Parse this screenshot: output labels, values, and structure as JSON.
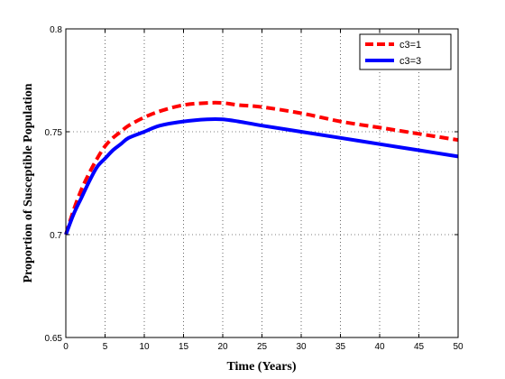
{
  "chart_data": {
    "type": "line",
    "title": "",
    "xlabel": "Time (Years)",
    "ylabel": "Proportion of Susceptible Population",
    "xlim": [
      0,
      50
    ],
    "ylim": [
      0.65,
      0.8
    ],
    "xticks": [
      0,
      5,
      10,
      15,
      20,
      25,
      30,
      35,
      40,
      45,
      50
    ],
    "yticks": [
      0.65,
      0.7,
      0.75,
      0.8
    ],
    "xtick_labels": [
      "0",
      "5",
      "10",
      "15",
      "20",
      "25",
      "30",
      "35",
      "40",
      "45",
      "50"
    ],
    "ytick_labels": [
      "0.65",
      "0.7",
      "0.75",
      "0.8"
    ],
    "grid": true,
    "legend": {
      "position": "top-right"
    },
    "series": [
      {
        "name": "c3=1",
        "color": "#ff0000",
        "style": "dashed",
        "points": [
          [
            0,
            0.7
          ],
          [
            1,
            0.712
          ],
          [
            2,
            0.722
          ],
          [
            3,
            0.73
          ],
          [
            4,
            0.737
          ],
          [
            5,
            0.743
          ],
          [
            6,
            0.747
          ],
          [
            7,
            0.75
          ],
          [
            8,
            0.753
          ],
          [
            10,
            0.757
          ],
          [
            12,
            0.76
          ],
          [
            15,
            0.763
          ],
          [
            18,
            0.764
          ],
          [
            20,
            0.764
          ],
          [
            22,
            0.763
          ],
          [
            25,
            0.762
          ],
          [
            30,
            0.759
          ],
          [
            35,
            0.755
          ],
          [
            40,
            0.752
          ],
          [
            45,
            0.749
          ],
          [
            50,
            0.746
          ]
        ]
      },
      {
        "name": "c3=3",
        "color": "#0000ff",
        "style": "solid",
        "points": [
          [
            0,
            0.7
          ],
          [
            1,
            0.71
          ],
          [
            2,
            0.718
          ],
          [
            3,
            0.726
          ],
          [
            4,
            0.733
          ],
          [
            5,
            0.737
          ],
          [
            6,
            0.741
          ],
          [
            7,
            0.744
          ],
          [
            8,
            0.747
          ],
          [
            10,
            0.75
          ],
          [
            12,
            0.753
          ],
          [
            15,
            0.755
          ],
          [
            18,
            0.756
          ],
          [
            20,
            0.756
          ],
          [
            22,
            0.755
          ],
          [
            25,
            0.753
          ],
          [
            30,
            0.75
          ],
          [
            35,
            0.747
          ],
          [
            40,
            0.744
          ],
          [
            45,
            0.741
          ],
          [
            50,
            0.738
          ]
        ]
      }
    ]
  }
}
